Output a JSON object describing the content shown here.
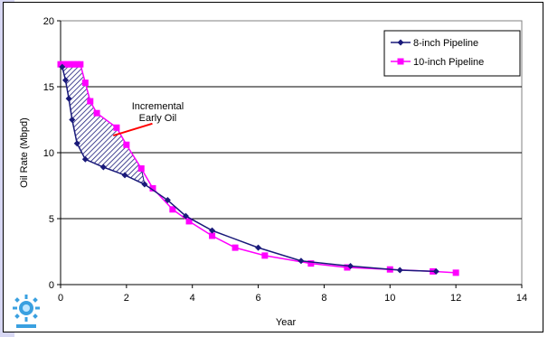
{
  "chart_data": {
    "type": "line",
    "title": "",
    "xlabel": "Year",
    "ylabel": "Oil Rate (Mbpd)",
    "xlim": [
      0,
      14
    ],
    "ylim": [
      0,
      20
    ],
    "xticks": [
      0,
      2,
      4,
      6,
      8,
      10,
      12,
      14
    ],
    "yticks": [
      0,
      5,
      10,
      15,
      20
    ],
    "grid": "horizontal",
    "legend_position": "top-right",
    "series": [
      {
        "name": "8-inch Pipeline",
        "color": "#1a1a7a",
        "marker": "diamond",
        "x": [
          0.05,
          0.15,
          0.25,
          0.35,
          0.5,
          0.75,
          1.3,
          1.95,
          2.55,
          3.25,
          3.8,
          4.6,
          6.0,
          7.3,
          8.8,
          10.3,
          11.4
        ],
        "y": [
          16.5,
          15.5,
          14.1,
          12.5,
          10.7,
          9.5,
          8.9,
          8.3,
          7.6,
          6.4,
          5.2,
          4.1,
          2.8,
          1.8,
          1.4,
          1.1,
          1.0
        ]
      },
      {
        "name": "10-inch Pipeline",
        "color": "#ff00ff",
        "marker": "square",
        "x": [
          0.0,
          0.1,
          0.2,
          0.3,
          0.4,
          0.5,
          0.6,
          0.75,
          0.9,
          1.1,
          1.7,
          2.0,
          2.45,
          2.8,
          3.4,
          3.9,
          4.6,
          5.3,
          6.2,
          7.6,
          8.7,
          10.0,
          11.3,
          12.0
        ],
        "y": [
          16.7,
          16.7,
          16.7,
          16.7,
          16.7,
          16.7,
          16.7,
          15.3,
          13.9,
          13.0,
          11.9,
          10.6,
          8.8,
          7.3,
          5.7,
          4.8,
          3.7,
          2.8,
          2.2,
          1.6,
          1.3,
          1.15,
          1.0,
          0.9
        ]
      }
    ],
    "annotations": [
      {
        "text": "Incremental\nEarly Oil",
        "x": 2.95,
        "y": 13.3,
        "arrow_to": [
          1.6,
          11.3
        ]
      }
    ],
    "shaded_region": {
      "between_series": [
        "8-inch Pipeline",
        "10-inch Pipeline"
      ],
      "x_range": [
        0,
        2.7
      ],
      "pattern": "diagonal-hatch"
    }
  }
}
